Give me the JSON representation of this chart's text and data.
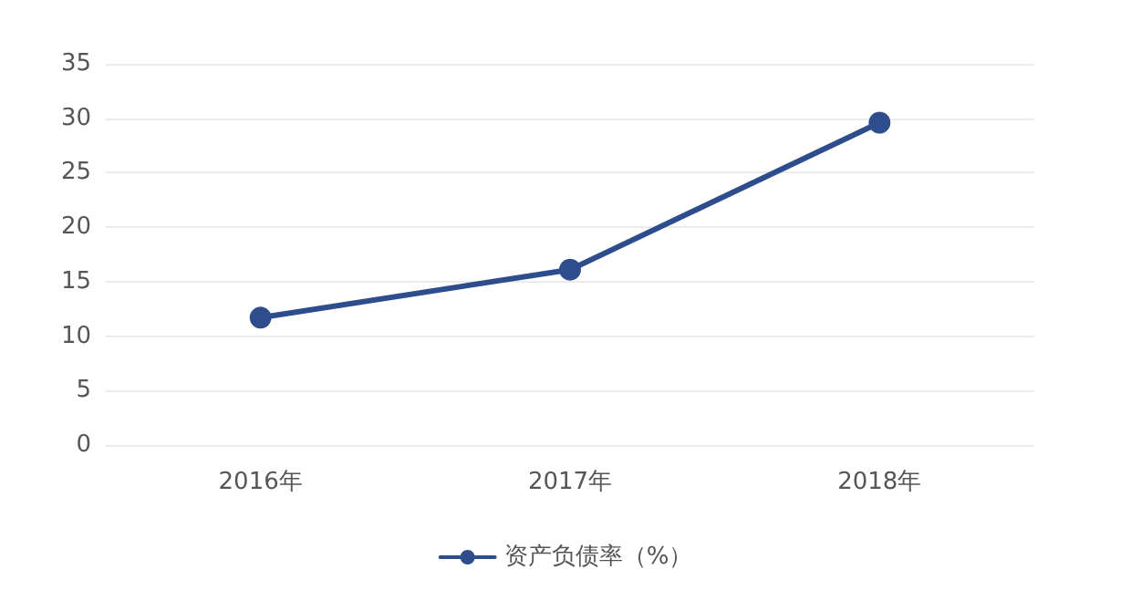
{
  "chart_data": {
    "type": "line",
    "categories": [
      "2016年",
      "2017年",
      "2018年"
    ],
    "series": [
      {
        "name": "资产负债率（%）",
        "color": "#2e4d8c",
        "values": [
          11.7,
          16.1,
          29.6
        ]
      }
    ],
    "ylim": [
      0,
      35
    ],
    "yticks": [
      0,
      5,
      10,
      15,
      20,
      25,
      30,
      35
    ],
    "grid": "y",
    "legend": "bottom",
    "marker": "circle",
    "line_style": "solid"
  }
}
